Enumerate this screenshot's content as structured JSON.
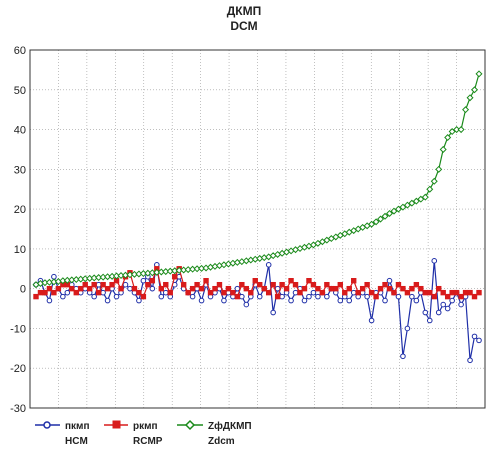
{
  "chart_data": {
    "type": "line",
    "title": "ДКМП",
    "subtitle": "DCM",
    "ylim": [
      -30,
      60
    ],
    "yticks": [
      -30,
      -20,
      -10,
      0,
      10,
      20,
      30,
      40,
      50,
      60
    ],
    "grid": true,
    "legend_position": "bottom",
    "x": [
      1,
      2,
      3,
      4,
      5,
      6,
      7,
      8,
      9,
      10,
      11,
      12,
      13,
      14,
      15,
      16,
      17,
      18,
      19,
      20,
      21,
      22,
      23,
      24,
      25,
      26,
      27,
      28,
      29,
      30,
      31,
      32,
      33,
      34,
      35,
      36,
      37,
      38,
      39,
      40,
      41,
      42,
      43,
      44,
      45,
      46,
      47,
      48,
      49,
      50,
      51,
      52,
      53,
      54,
      55,
      56,
      57,
      58,
      59,
      60,
      61,
      62,
      63,
      64,
      65,
      66,
      67,
      68,
      69,
      70,
      71,
      72,
      73,
      74,
      75,
      76,
      77,
      78,
      79,
      80,
      81,
      82,
      83,
      84,
      85,
      86,
      87,
      88,
      89,
      90,
      91,
      92,
      93,
      94,
      95,
      96,
      97,
      98,
      99,
      100
    ],
    "series": [
      {
        "name": "пкмп",
        "name2": "HCM",
        "color": "#1f2fa8",
        "marker": "circle",
        "values": [
          1,
          2,
          -1,
          -3,
          3,
          0,
          -2,
          -1,
          1,
          0,
          -1,
          0,
          -1,
          -2,
          1,
          -1,
          -3,
          0,
          -2,
          -1,
          1,
          0,
          -1,
          -3,
          2,
          3,
          0,
          6,
          -2,
          -1,
          -2,
          1,
          3,
          0,
          -1,
          -2,
          0,
          -3,
          1,
          -2,
          -1,
          0,
          -3,
          -1,
          -2,
          0,
          -2,
          -4,
          -2,
          1,
          -2,
          0,
          6,
          -6,
          0,
          -2,
          -1,
          -3,
          -1,
          0,
          -3,
          -2,
          -1,
          -2,
          -1,
          -2,
          0,
          -1,
          -3,
          -2,
          -3,
          -1,
          -2,
          -1,
          -2,
          -8,
          -1,
          -1,
          -3,
          2,
          -1,
          -2,
          -17,
          -10,
          -2,
          -3,
          -1,
          -6,
          -8,
          7,
          -6,
          -4,
          -5,
          -3,
          -1,
          -4,
          -2,
          -18,
          -12,
          -13
        ]
      },
      {
        "name": "ркмп",
        "name2": "RCMP",
        "color": "#d81b1b",
        "marker": "square",
        "values": [
          -2,
          -1,
          -1,
          0,
          -1,
          0,
          1,
          1,
          0,
          -1,
          0,
          1,
          0,
          1,
          -1,
          1,
          0,
          1,
          2,
          0,
          3,
          4,
          0,
          -1,
          -2,
          1,
          2,
          5,
          0,
          1,
          -1,
          3,
          5,
          1,
          -1,
          0,
          1,
          0,
          2,
          -1,
          0,
          1,
          -1,
          0,
          -1,
          -2,
          1,
          0,
          -1,
          2,
          1,
          0,
          -1,
          1,
          -2,
          1,
          0,
          2,
          1,
          -1,
          0,
          2,
          1,
          0,
          -1,
          1,
          0,
          0,
          1,
          -1,
          0,
          2,
          -1,
          0,
          1,
          -1,
          -2,
          0,
          1,
          0,
          -1,
          1,
          0,
          -1,
          0,
          1,
          0,
          -1,
          -1,
          -2,
          0,
          -1,
          -2,
          -1,
          -1,
          -2,
          -1,
          -1,
          -2,
          -1
        ]
      },
      {
        "name": "ZфДКМП",
        "name2": "Zdcm",
        "color": "#1a8a1a",
        "marker": "diamond",
        "values": [
          1,
          1.3,
          1.5,
          1.6,
          1.7,
          1.8,
          2,
          2.1,
          2.2,
          2.3,
          2.4,
          2.5,
          2.6,
          2.7,
          2.8,
          2.9,
          3,
          3.1,
          3.2,
          3.3,
          3.4,
          3.5,
          3.6,
          3.7,
          3.8,
          3.9,
          4,
          4.1,
          4.2,
          4.3,
          4.4,
          4.5,
          4.6,
          4.7,
          4.8,
          4.9,
          5,
          5.1,
          5.2,
          5.4,
          5.6,
          5.8,
          6,
          6.2,
          6.4,
          6.6,
          6.8,
          7,
          7.2,
          7.4,
          7.6,
          7.8,
          8,
          8.3,
          8.6,
          8.9,
          9.2,
          9.5,
          9.8,
          10.1,
          10.4,
          10.7,
          11,
          11.4,
          11.8,
          12.2,
          12.6,
          13,
          13.4,
          13.8,
          14.2,
          14.6,
          15,
          15.4,
          15.8,
          16.2,
          16.8,
          17.5,
          18.2,
          18.9,
          19.5,
          20,
          20.5,
          21,
          21.5,
          22,
          22.5,
          23,
          25,
          27,
          30,
          35,
          38,
          39.5,
          40,
          40,
          45,
          48,
          50,
          54
        ]
      }
    ]
  }
}
